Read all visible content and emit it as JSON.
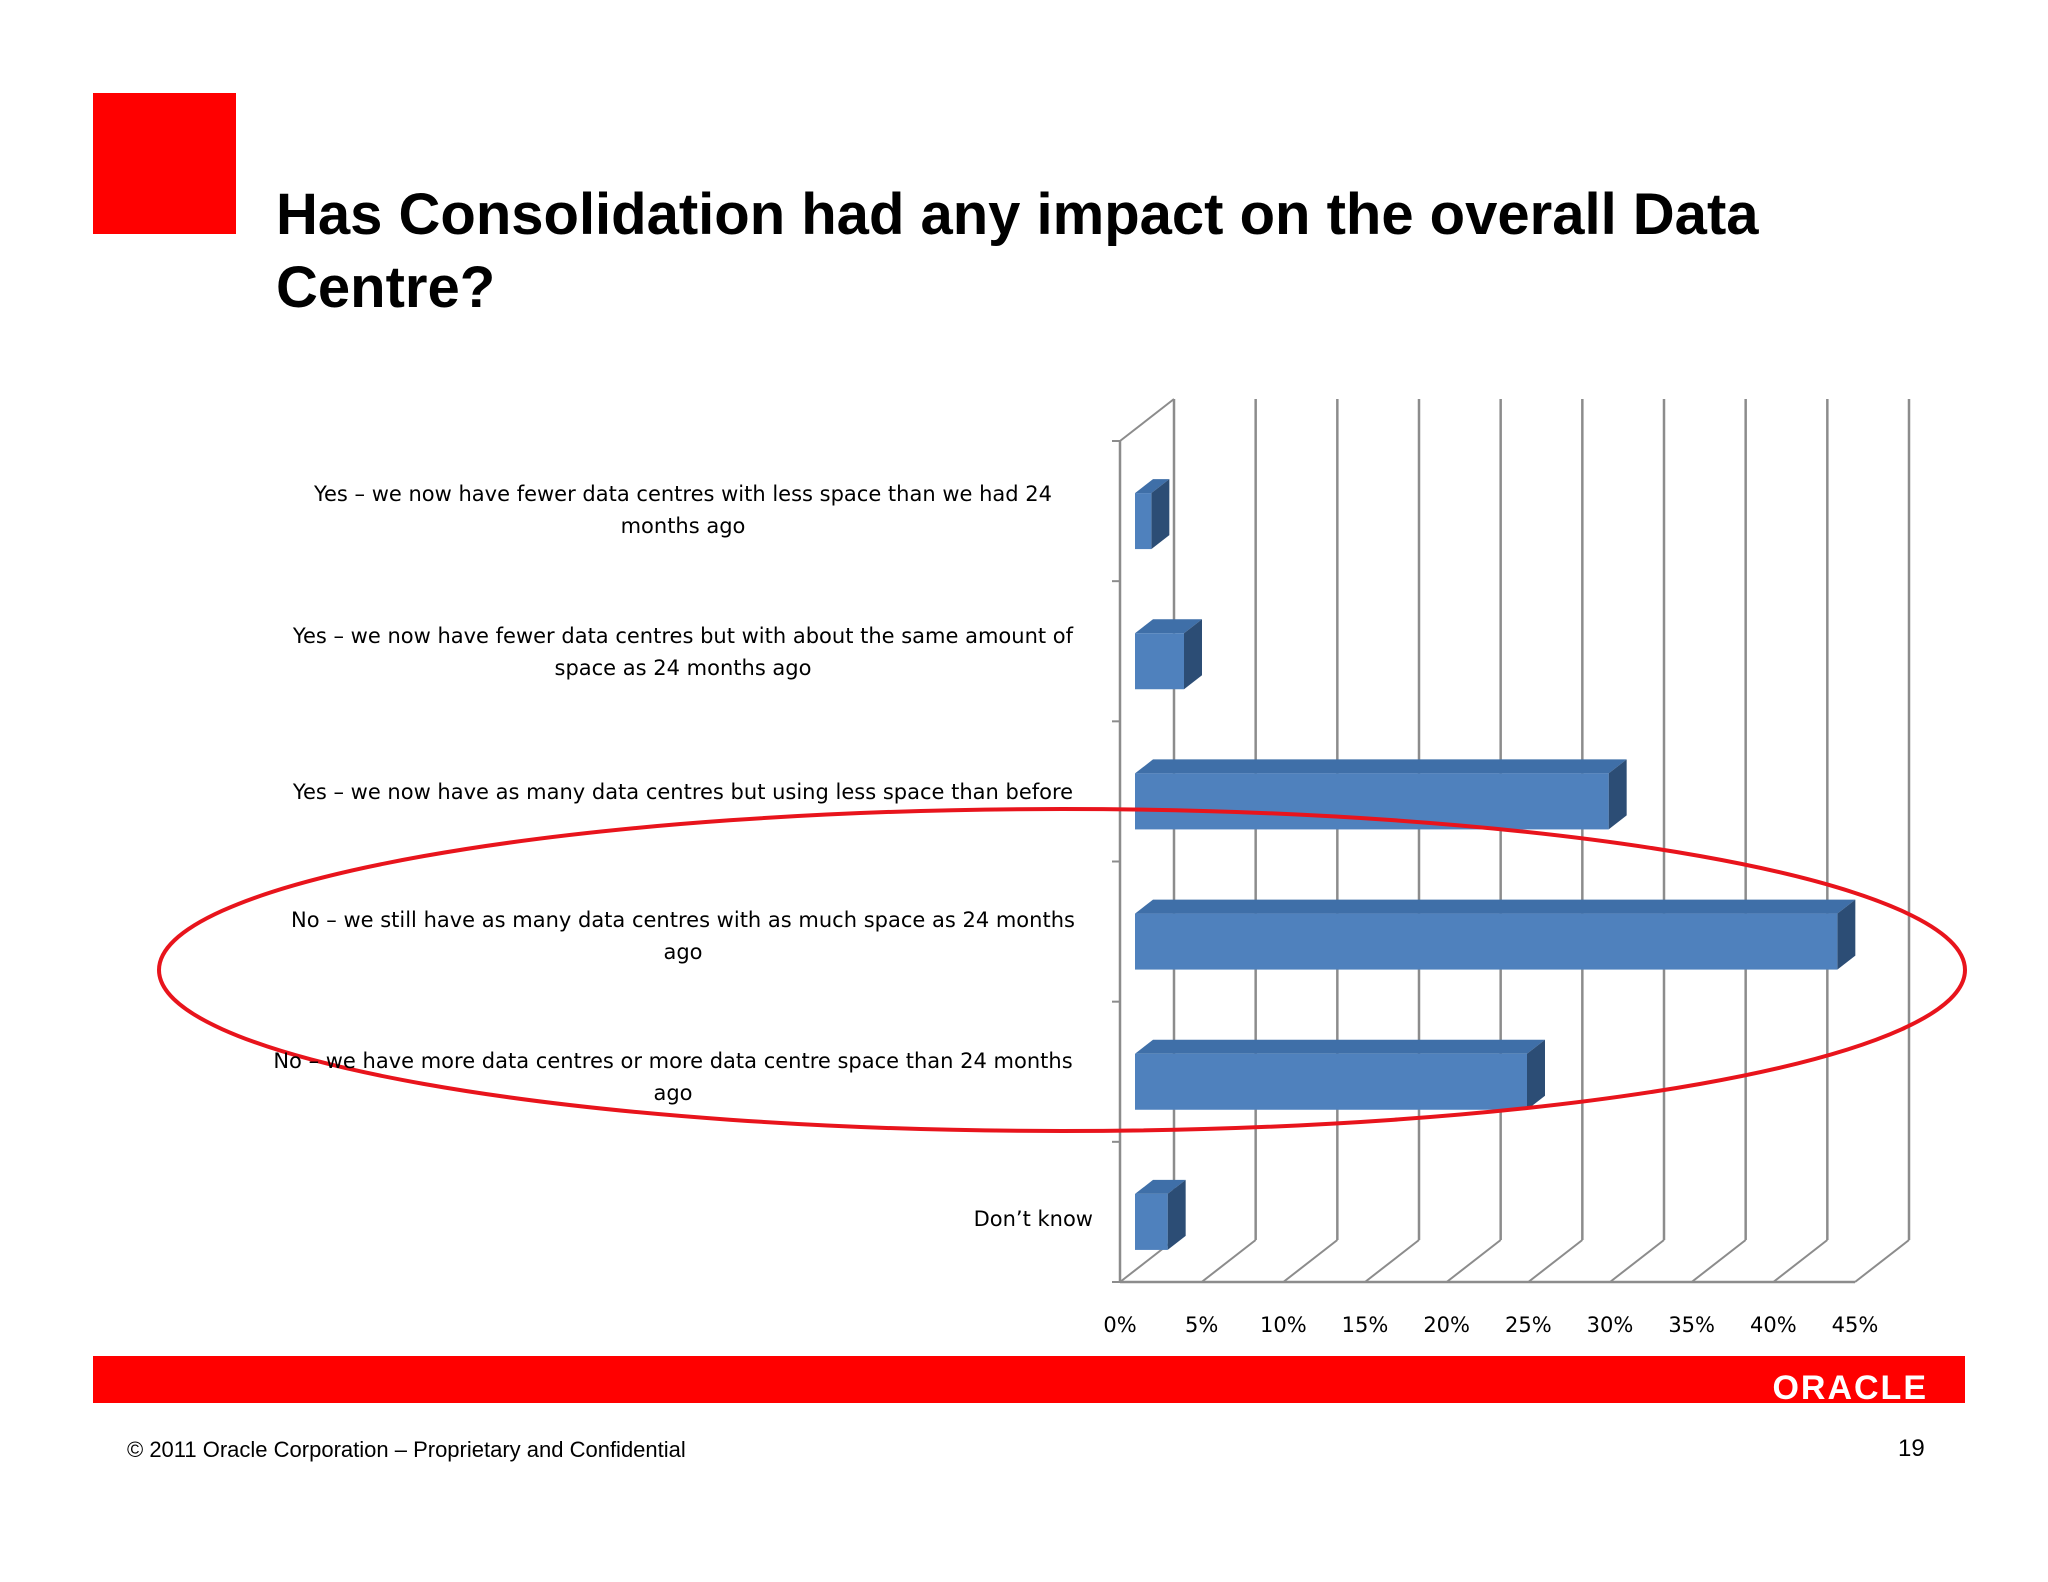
{
  "slide": {
    "title": "Has Consolidation had any impact on the overall Data Centre?",
    "footer": {
      "logo_text": "ORACLE",
      "copyright": "© 2011 Oracle Corporation – Proprietary and Confidential",
      "page_number": "19"
    }
  },
  "colors": {
    "accent": "#ff0000",
    "bar_front": "#4f81bd",
    "bar_top": "#3f6fa8",
    "bar_side": "#2c4d75",
    "grid": "#8c8c8c",
    "highlight_ellipse": "#e8141c"
  },
  "chart_data": {
    "type": "bar",
    "orientation": "horizontal",
    "style": "3d",
    "categories": [
      "Yes – we now have fewer data centres with less space than we had 24 months ago",
      "Yes – we now have fewer data centres but with about the same amount of space as 24 months ago",
      "Yes – we now have as many data centres but using less space than before",
      "No – we still have as many data centres with as much space as 24 months ago",
      "No – we have more data centres or more data centre space than 24 months ago",
      "Don’t know"
    ],
    "values": [
      1,
      3,
      29,
      43,
      24,
      2
    ],
    "x_ticks": [
      "0%",
      "5%",
      "10%",
      "15%",
      "20%",
      "25%",
      "30%",
      "35%",
      "40%",
      "45%"
    ],
    "xlim": [
      0,
      45
    ],
    "unit": "%",
    "grid": true,
    "legend": "none",
    "highlighted_categories": [
      3,
      4
    ]
  }
}
